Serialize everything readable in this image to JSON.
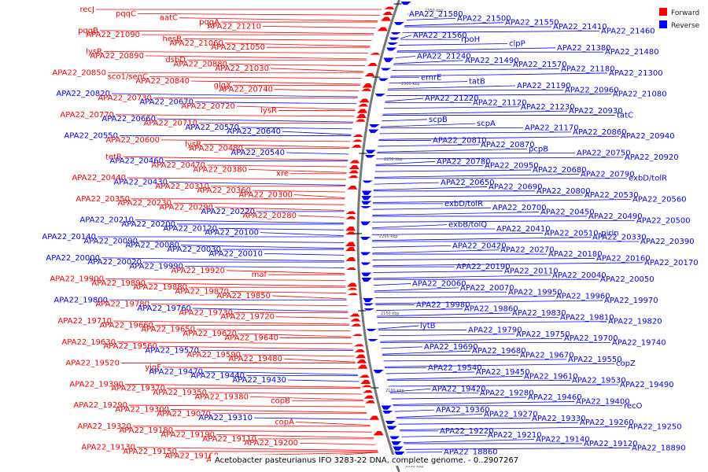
{
  "caption": "Acetobacter pasteurianus IFO 3283-22 DNA, complete genome. - 0..2907267",
  "legend": [
    {
      "name": "Forward",
      "color": "#ff0000"
    },
    {
      "name": "Reverse",
      "color": "#0000ff"
    }
  ],
  "ruler_ticks": [
    "2350 kbp",
    "2300 kbp",
    "2250 kbp",
    "2200 kbp",
    "2150 kbp",
    "2100 kbp",
    "2050 kbp"
  ],
  "left_labels": [
    "recJ",
    "pqqC",
    "aatC",
    "pqqA",
    "APA22_21210",
    "pqqB",
    "APA22_21090",
    "hesB",
    "APA22_21060",
    "APA22_21050",
    "lysR",
    "APA22_20890",
    "dsbD",
    "APA22_20880",
    "APA22_21030",
    "APA22_20850",
    "sco1/senC",
    "APA22_20840",
    "glgX",
    "APA22_20740",
    "APA22_20820",
    "APA22_20730",
    "APA22_20670",
    "APA22_20720",
    "lysR",
    "APA22_20770",
    "APA22_20660",
    "APA22_20710",
    "APA22_20570",
    "APA22_20640",
    "APA22_20550",
    "APA22_20600",
    "lysR",
    "APA22_20480",
    "APA22_20540",
    "tetR",
    "APA22_20460",
    "APA22_20470",
    "APA22_20380",
    "xre",
    "APA22_20440",
    "APA22_20430",
    "APA22_20310",
    "APA22_20360",
    "APA22_20300",
    "APA22_20350",
    "APA22_20230",
    "APA22_20290",
    "APA22_20220",
    "APA22_20280",
    "APA22_20210",
    "APA22_20200",
    "APA22_20120",
    "APA22_20100",
    "APA22_20140",
    "APA22_20090",
    "APA22_20080",
    "APA22_20030",
    "APA22_20010",
    "APA22_20000",
    "APA22_20020",
    "APA22_19990",
    "APA22_19920",
    "maf",
    "APA22_19900",
    "APA22_19890",
    "APA22_19880",
    "APA22_19870",
    "APA22_19850",
    "APA22_19800",
    "APA22_19780",
    "APA22_19760",
    "APA22_19730",
    "APA22_19720",
    "APA22_19710",
    "APA22_19660",
    "APA22_19650",
    "APA22_19620",
    "APA22_19640",
    "APA22_19630",
    "APA22_19560",
    "APA22_19570",
    "APA22_19590",
    "APA22_19480",
    "APA22_19520",
    "yjgF",
    "APA22_19470",
    "APA22_19440",
    "APA22_19430",
    "APA22_19390",
    "APA22_19370",
    "APA22_19350",
    "APA22_19380",
    "copB",
    "APA22_19290",
    "APA22_19300",
    "APA22_19070",
    "APA22_19310",
    "copA",
    "APA22_19320",
    "APA22_19180",
    "APA22_19190",
    "APA22_19110",
    "APA22_19200",
    "APA22_19130",
    "APA22_19150",
    "APA22_19160",
    "APA22_19100"
  ],
  "right_labels": [
    "APA22_21580",
    "APA22_21500",
    "APA22_21550",
    "APA22_21410",
    "APA22_21460",
    "APA22_21560",
    "rpoH",
    "clpP",
    "APA22_21380",
    "APA22_21480",
    "APA22_21240",
    "APA22_21490",
    "APA22_21570",
    "APA22_21180",
    "APA22_21300",
    "emrE",
    "tatB",
    "APA22_21190",
    "APA22_20960",
    "APA22_21080",
    "APA22_21220",
    "APA22_21120",
    "APA22_21230",
    "APA22_20930",
    "tatC",
    "scpB",
    "scpA",
    "APA22_21170",
    "APA22_20860",
    "APA22_20940",
    "APA22_20810",
    "APA22_20870",
    "pcpB",
    "APA22_20750",
    "APA22_20920",
    "APA22_20780",
    "APA22_20950",
    "APA22_20680",
    "APA22_20790",
    "exbD/tolR",
    "APA22_20650",
    "APA22_20690",
    "APA22_20800",
    "APA22_20530",
    "APA22_20560",
    "exbD/tolR",
    "APA22_20700",
    "APA22_20450",
    "APA22_20490",
    "APA22_20500",
    "exbB/tolQ",
    "APA22_20410",
    "APA22_20510-pirin",
    "APA22_20330",
    "APA22_20390",
    "APA22_20420",
    "APA22_20270",
    "APA22_20180",
    "APA22_20160",
    "APA22_20170",
    "APA22_20190",
    "APA22_20110",
    "APA22_20040",
    "APA22_20050",
    "APA22_20060",
    "APA22_20070",
    "APA22_19950",
    "APA22_19960",
    "APA22_19970",
    "APA22_19980",
    "APA22_19860",
    "APA22_19830",
    "APA22_19810",
    "APA22_19820",
    "lytB",
    "APA22_19790",
    "APA22_19750",
    "APA22_19700",
    "APA22_19740",
    "APA22_19690",
    "APA22_19680",
    "APA22_19670",
    "APA22_19550",
    "copZ",
    "APA22_19540",
    "APA22_19450",
    "APA22_19610",
    "APA22_19530",
    "APA22_19490",
    "APA22_19420",
    "APA22_19280",
    "APA22_19460",
    "APA22_19400",
    "recO",
    "APA22_19360",
    "APA22_19270",
    "APA22_19330",
    "APA22_19260",
    "APA22_19250",
    "APA22_19220",
    "APA22_19210",
    "APA22_19140",
    "APA22_19120",
    "APA22_18890",
    "APA22_18860"
  ]
}
